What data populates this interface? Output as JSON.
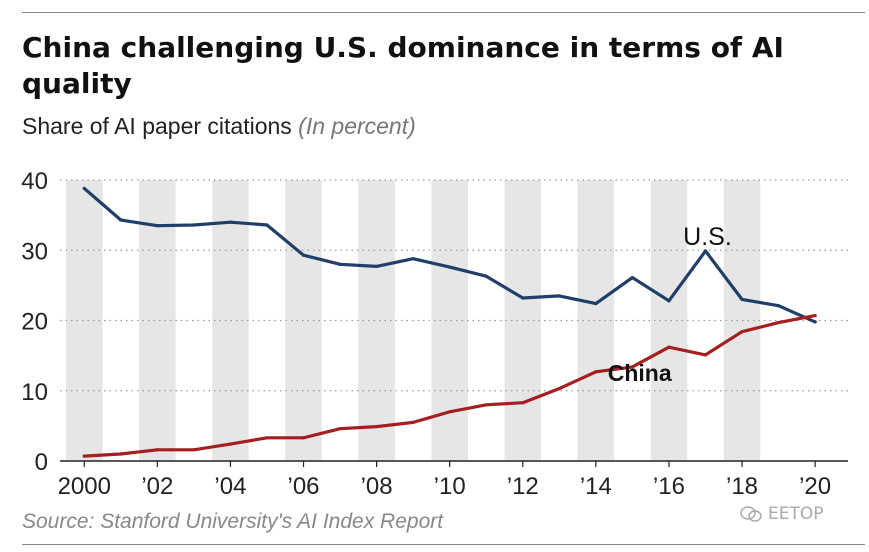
{
  "title": "China challenging U.S. dominance in terms of AI quality",
  "subtitle": "Share of AI paper citations",
  "unit_note": "(In percent)",
  "source": "Source: Stanford University's AI Index Report",
  "watermark": "EETOP",
  "chart_data": {
    "type": "line",
    "title": "China challenging U.S. dominance in terms of AI quality",
    "subtitle": "Share of AI paper citations (In percent)",
    "x": [
      2000,
      2001,
      2002,
      2003,
      2004,
      2005,
      2006,
      2007,
      2008,
      2009,
      2010,
      2011,
      2012,
      2013,
      2014,
      2015,
      2016,
      2017,
      2018,
      2019,
      2020
    ],
    "x_tick_values": [
      2000,
      2002,
      2004,
      2006,
      2008,
      2010,
      2012,
      2014,
      2016,
      2018,
      2020
    ],
    "x_tick_labels": [
      "2000",
      "’02",
      "’04",
      "’06",
      "’08",
      "’10",
      "’12",
      "’14",
      "’16",
      "’18",
      "’20"
    ],
    "y_ticks": [
      0,
      10,
      20,
      30,
      40
    ],
    "ylim": [
      0,
      40
    ],
    "grid": "horizontal dotted, alternating vertical year bands",
    "series": [
      {
        "name": "U.S.",
        "color": "#1f3f68",
        "values": [
          38.8,
          34.3,
          33.5,
          33.6,
          34.0,
          33.6,
          29.3,
          28.0,
          27.7,
          28.8,
          27.6,
          26.3,
          23.2,
          23.5,
          22.4,
          26.1,
          22.8,
          29.9,
          23.0,
          22.1,
          19.8
        ]
      },
      {
        "name": "China",
        "color": "#a51f1f",
        "values": [
          0.7,
          1.0,
          1.6,
          1.6,
          2.4,
          3.3,
          3.3,
          4.6,
          4.9,
          5.5,
          7.0,
          8.0,
          8.3,
          10.3,
          12.7,
          13.4,
          16.2,
          15.1,
          18.4,
          19.7,
          20.7
        ]
      }
    ]
  }
}
